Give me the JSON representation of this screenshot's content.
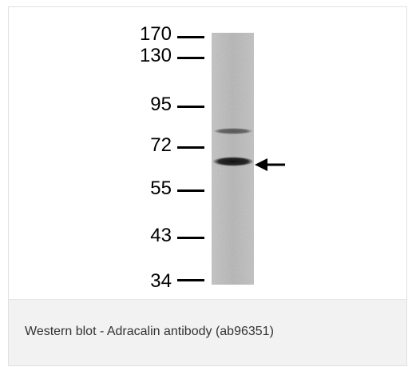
{
  "figure": {
    "marker_labels": [
      "170",
      "130",
      "95",
      "72",
      "55",
      "43",
      "34"
    ],
    "arrow": "right-pointing arrow indicating target band"
  },
  "caption": {
    "text": "Western blot - Adracalin antibody (ab96351)"
  },
  "colors": {
    "caption_background": "#f2f2f2",
    "caption_text": "#333333",
    "lane_background": "#b9b9b9",
    "band_dark": "#1a1a1a"
  }
}
